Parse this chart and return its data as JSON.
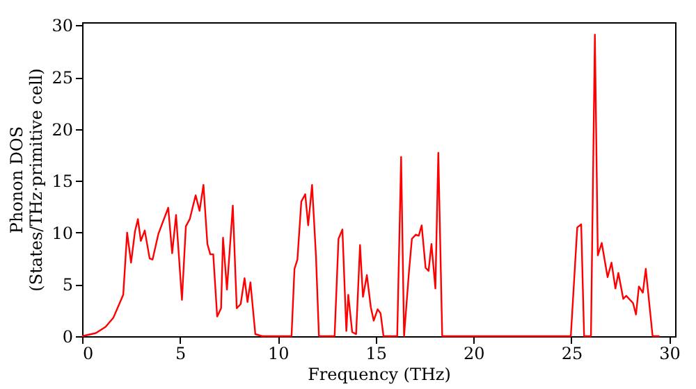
{
  "chart_data": {
    "type": "line",
    "xlabel": "Frequency (THz)",
    "ylabel": "Phonon DOS\n(States/THz·primitive cell)",
    "xlim": [
      0,
      30.3
    ],
    "ylim": [
      0,
      30.3
    ],
    "xticks": [
      0,
      5,
      10,
      15,
      20,
      25,
      30
    ],
    "yticks": [
      0,
      5,
      10,
      15,
      20,
      25,
      30
    ],
    "grid": false,
    "marker": "none",
    "line_style": "solid",
    "series": [
      {
        "color": "#ff0000",
        "x": [
          0,
          0.7,
          1.2,
          1.6,
          1.85,
          2.1,
          2.3,
          2.5,
          2.7,
          2.85,
          3.0,
          3.2,
          3.45,
          3.6,
          3.9,
          4.4,
          4.6,
          4.8,
          5.1,
          5.3,
          5.5,
          5.8,
          6.0,
          6.2,
          6.4,
          6.55,
          6.7,
          6.9,
          7.1,
          7.2,
          7.4,
          7.7,
          7.9,
          8.1,
          8.3,
          8.45,
          8.6,
          8.85,
          9.2,
          10.7,
          10.85,
          11.0,
          11.2,
          11.4,
          11.55,
          11.75,
          11.95,
          12.1,
          12.9,
          13.1,
          13.3,
          13.5,
          13.6,
          13.8,
          14.0,
          14.2,
          14.35,
          14.55,
          14.75,
          14.9,
          15.1,
          15.25,
          15.4,
          16.1,
          16.3,
          16.45,
          16.7,
          16.85,
          17.05,
          17.2,
          17.35,
          17.55,
          17.7,
          17.85,
          18.05,
          18.2,
          18.4,
          24.97,
          25.3,
          25.5,
          25.65,
          26.0,
          26.2,
          26.35,
          26.55,
          26.85,
          27.05,
          27.25,
          27.4,
          27.65,
          27.8,
          28.15,
          28.3,
          28.45,
          28.65,
          28.8,
          29.15,
          29.5
        ],
        "values": [
          0,
          0.3,
          0.9,
          1.8,
          2.9,
          4.0,
          10.0,
          7.1,
          10.1,
          11.3,
          9.2,
          10.2,
          7.5,
          7.4,
          9.9,
          12.4,
          8.0,
          11.7,
          3.5,
          10.6,
          11.3,
          13.6,
          12.1,
          14.6,
          8.9,
          7.9,
          7.9,
          1.9,
          2.7,
          9.5,
          4.5,
          12.6,
          2.7,
          3.1,
          5.6,
          3.3,
          5.2,
          0.2,
          0,
          0,
          6.5,
          7.4,
          13.0,
          13.7,
          10.7,
          14.6,
          7.7,
          0,
          0,
          9.4,
          10.3,
          0.5,
          4.0,
          0.4,
          0.2,
          8.8,
          3.8,
          5.9,
          2.8,
          1.5,
          2.6,
          2.2,
          0,
          0,
          17.3,
          0,
          6.2,
          9.4,
          9.8,
          9.7,
          10.7,
          6.6,
          6.3,
          8.9,
          4.6,
          17.7,
          0,
          0,
          10.5,
          10.8,
          0,
          0,
          29.1,
          7.8,
          9.0,
          5.7,
          7.1,
          4.6,
          6.1,
          3.6,
          3.9,
          3.2,
          2.1,
          4.8,
          4.2,
          6.5,
          0,
          0
        ]
      }
    ]
  }
}
